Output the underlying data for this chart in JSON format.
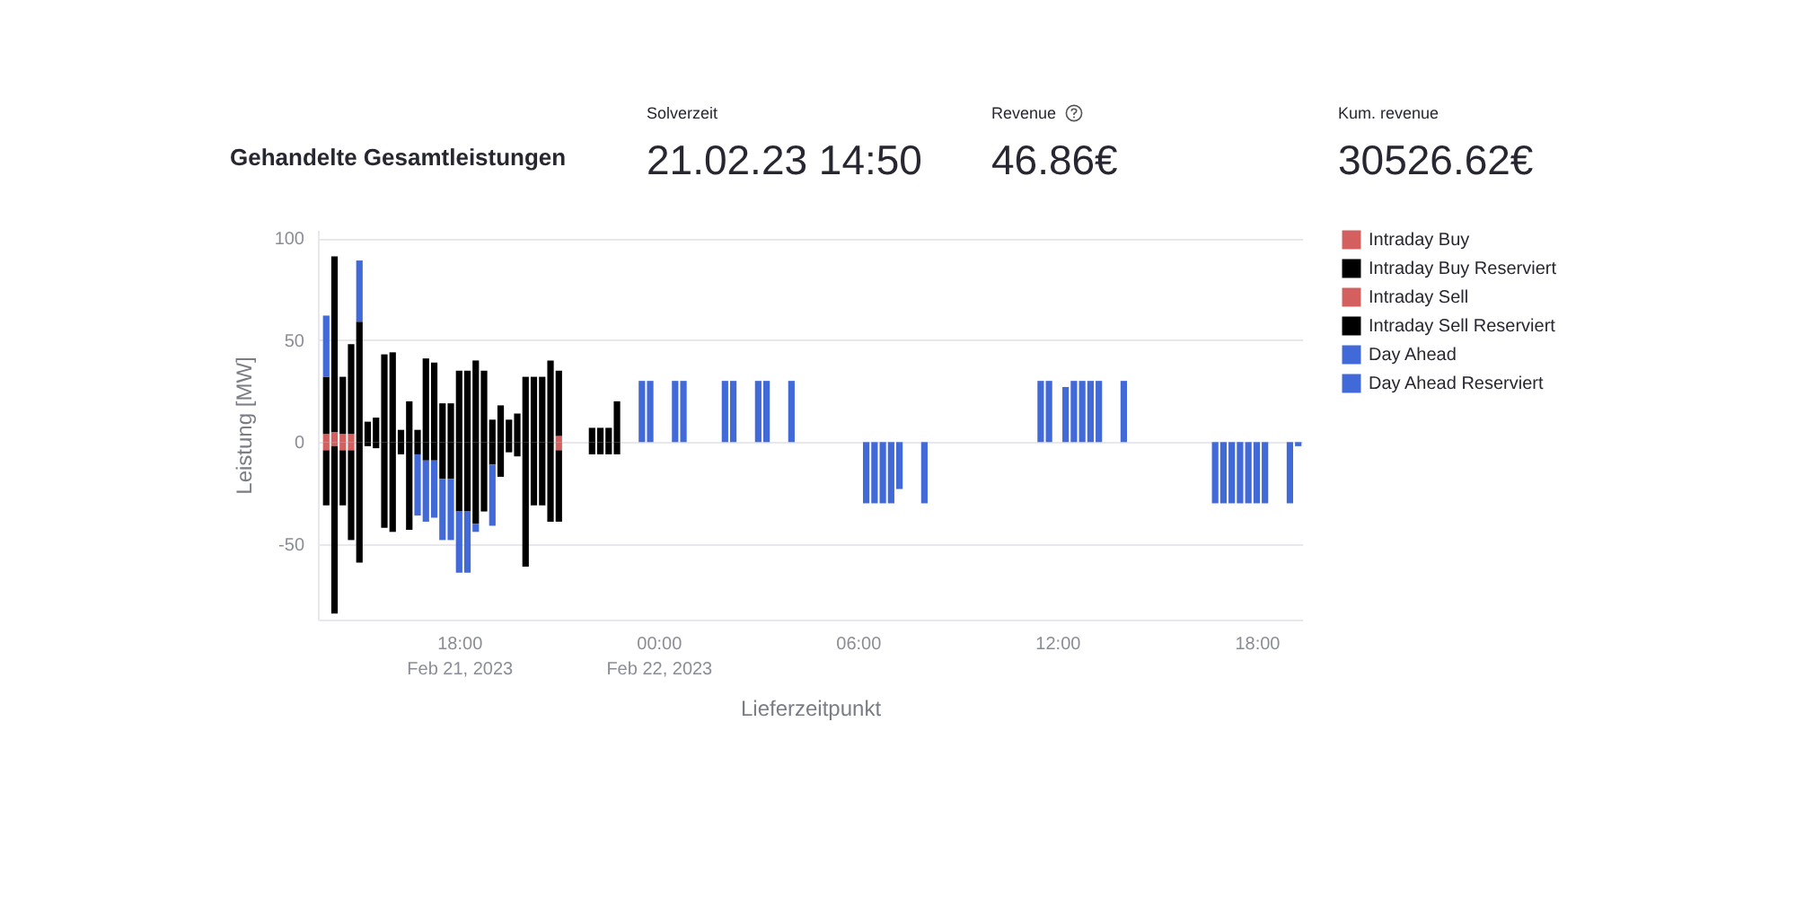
{
  "chart_data": {
    "type": "bar",
    "stacked": true,
    "title": "Gehandelte Gesamtleistungen",
    "xlabel": "Lieferzeitpunkt",
    "ylabel": "Leistung [MW]",
    "annotations": [
      "Solverzeit",
      "21.02.23 14:50",
      "Revenue",
      "46.86€",
      "Kum. revenue",
      "30526.62€"
    ],
    "x": [
      "2023-02-21T14:00",
      "2023-02-21T14:15",
      "2023-02-21T14:30",
      "2023-02-21T14:45",
      "2023-02-21T15:00",
      "2023-02-21T15:15",
      "2023-02-21T15:30",
      "2023-02-21T15:45",
      "2023-02-21T16:00",
      "2023-02-21T16:15",
      "2023-02-21T16:30",
      "2023-02-21T16:45",
      "2023-02-21T17:00",
      "2023-02-21T17:15",
      "2023-02-21T17:30",
      "2023-02-21T17:45",
      "2023-02-21T18:00",
      "2023-02-21T18:15",
      "2023-02-21T18:30",
      "2023-02-21T18:45",
      "2023-02-21T19:00",
      "2023-02-21T19:15",
      "2023-02-21T19:30",
      "2023-02-21T19:45",
      "2023-02-21T20:00",
      "2023-02-21T20:15",
      "2023-02-21T20:30",
      "2023-02-21T20:45",
      "2023-02-21T21:00",
      "2023-02-21T22:00",
      "2023-02-21T22:15",
      "2023-02-21T22:30",
      "2023-02-21T22:45",
      "2023-02-21T23:30",
      "2023-02-21T23:45",
      "2023-02-22T00:30",
      "2023-02-22T00:45",
      "2023-02-22T02:00",
      "2023-02-22T02:15",
      "2023-02-22T03:00",
      "2023-02-22T03:15",
      "2023-02-22T04:00",
      "2023-02-22T06:15",
      "2023-02-22T06:30",
      "2023-02-22T06:45",
      "2023-02-22T07:00",
      "2023-02-22T07:15",
      "2023-02-22T08:00",
      "2023-02-22T11:30",
      "2023-02-22T11:45",
      "2023-02-22T12:15",
      "2023-02-22T12:30",
      "2023-02-22T12:45",
      "2023-02-22T13:00",
      "2023-02-22T13:15",
      "2023-02-22T14:00",
      "2023-02-22T16:45",
      "2023-02-22T17:00",
      "2023-02-22T17:15",
      "2023-02-22T17:30",
      "2023-02-22T17:45",
      "2023-02-22T18:00",
      "2023-02-22T18:15",
      "2023-02-22T19:00",
      "2023-02-22T19:15"
    ],
    "series": [
      {
        "name": "Intraday Buy",
        "color": "#d45f5f",
        "values": [
          4,
          5,
          4,
          4,
          null,
          null,
          null,
          null,
          null,
          null,
          null,
          null,
          null,
          null,
          null,
          null,
          null,
          null,
          null,
          null,
          null,
          null,
          null,
          null,
          null,
          null,
          null,
          null,
          3,
          null,
          null,
          null,
          null,
          null,
          null,
          null,
          null,
          null,
          null,
          null,
          null,
          null,
          null,
          null,
          null,
          null,
          null,
          null,
          null,
          null,
          null,
          null,
          null,
          null,
          null,
          null,
          null,
          null,
          null,
          null,
          null,
          null,
          null,
          null,
          null
        ]
      },
      {
        "name": "Intraday Buy Reserviert",
        "color": "#000000",
        "values": [
          28,
          86,
          28,
          44,
          59,
          10,
          12,
          43,
          44,
          6,
          20,
          6,
          41,
          39,
          19,
          19,
          35,
          35,
          40,
          35,
          11,
          18,
          11,
          14,
          32,
          32,
          32,
          40,
          32,
          7,
          7,
          7,
          20,
          null,
          null,
          null,
          null,
          null,
          null,
          null,
          null,
          null,
          null,
          null,
          null,
          null,
          null,
          null,
          null,
          null,
          null,
          null,
          null,
          null,
          null,
          null,
          null,
          null,
          null,
          null,
          null,
          null,
          null,
          null,
          null
        ]
      },
      {
        "name": "Intraday Sell",
        "color": "#d45f5f",
        "values": [
          -4,
          -2,
          -4,
          -4,
          null,
          null,
          null,
          null,
          null,
          null,
          null,
          null,
          null,
          null,
          null,
          null,
          null,
          null,
          null,
          null,
          null,
          null,
          null,
          null,
          null,
          null,
          null,
          null,
          -4,
          null,
          null,
          null,
          null,
          null,
          null,
          null,
          null,
          null,
          null,
          null,
          null,
          null,
          null,
          null,
          null,
          null,
          null,
          null,
          null,
          null,
          null,
          null,
          null,
          null,
          null,
          null,
          null,
          null,
          null,
          null,
          null,
          null,
          null,
          null,
          null
        ]
      },
      {
        "name": "Intraday Sell Reserviert",
        "color": "#000000",
        "values": [
          -27,
          -82,
          -27,
          -44,
          -59,
          -2,
          -3,
          -42,
          -44,
          -6,
          -43,
          -6,
          -9,
          -9,
          -18,
          -18,
          -34,
          -34,
          -40,
          -34,
          -11,
          -17,
          -5,
          -7,
          -61,
          -31,
          -31,
          -39,
          -35,
          -6,
          -6,
          -6,
          -6,
          null,
          null,
          null,
          null,
          null,
          null,
          null,
          null,
          null,
          null,
          null,
          null,
          null,
          null,
          null,
          null,
          null,
          null,
          null,
          null,
          null,
          null,
          null,
          null,
          null,
          null,
          null,
          null,
          null,
          null,
          null,
          null
        ]
      },
      {
        "name": "Day Ahead",
        "color": "#4169d8",
        "values": [
          30,
          null,
          null,
          null,
          30,
          null,
          null,
          null,
          null,
          null,
          null,
          -30,
          -30,
          -28,
          -30,
          -30,
          -30,
          -30,
          -4,
          null,
          -30,
          null,
          null,
          null,
          null,
          null,
          null,
          null,
          null,
          null,
          null,
          null,
          null,
          30,
          30,
          30,
          30,
          30,
          30,
          30,
          30,
          30,
          -30,
          -30,
          -30,
          -30,
          -23,
          -30,
          30,
          30,
          27,
          30,
          30,
          30,
          30,
          30,
          -30,
          -30,
          -30,
          -30,
          -30,
          -30,
          -30,
          -30,
          -2
        ]
      },
      {
        "name": "Day Ahead Reserviert",
        "color": "#4169d8",
        "values": [
          null,
          null,
          null,
          null,
          null,
          null,
          null,
          null,
          null,
          null,
          null,
          null,
          null,
          null,
          null,
          null,
          null,
          null,
          null,
          null,
          null,
          null,
          null,
          null,
          null,
          null,
          null,
          null,
          null,
          null,
          null,
          null,
          null,
          null,
          null,
          null,
          null,
          null,
          null,
          null,
          null,
          null,
          null,
          null,
          null,
          null,
          null,
          null,
          null,
          null,
          null,
          null,
          null,
          null,
          null,
          null,
          null,
          null,
          null,
          null,
          null,
          null,
          null,
          null,
          null
        ]
      }
    ],
    "xlim": [
      "2023-02-21T13:45",
      "2023-02-22T19:22"
    ],
    "xticks": [
      {
        "value": "2023-02-21T18:00",
        "label": "18:00\nFeb 21, 2023"
      },
      {
        "value": "2023-02-22T00:00",
        "label": "00:00\nFeb 22, 2023"
      },
      {
        "value": "2023-02-22T06:00",
        "label": "06:00"
      },
      {
        "value": "2023-02-22T12:00",
        "label": "12:00"
      },
      {
        "value": "2023-02-22T18:00",
        "label": "18:00"
      }
    ],
    "ylim": [
      -87,
      104
    ],
    "yticks": [
      -50,
      0,
      50,
      100
    ],
    "grid": "y",
    "legend": "right"
  }
}
